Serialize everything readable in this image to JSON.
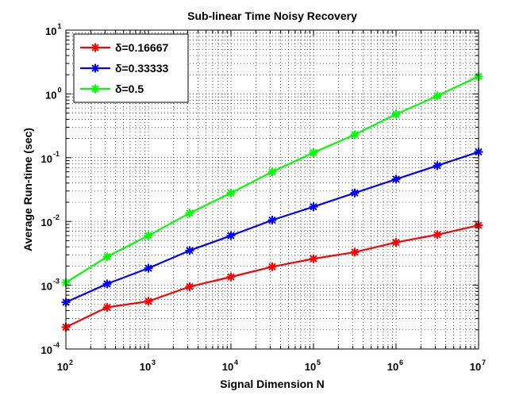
{
  "chart_data": {
    "type": "line",
    "title": "Sub-linear Time Noisy Recovery",
    "xlabel": "Signal Dimension N",
    "ylabel": "Average Run-time (sec)",
    "x_scale": "log",
    "y_scale": "log",
    "xlim": [
      100,
      10000000
    ],
    "ylim": [
      0.0001,
      10
    ],
    "x_ticks": [
      {
        "base": "10",
        "exp": "2",
        "value": 100
      },
      {
        "base": "10",
        "exp": "3",
        "value": 1000
      },
      {
        "base": "10",
        "exp": "4",
        "value": 10000
      },
      {
        "base": "10",
        "exp": "5",
        "value": 100000
      },
      {
        "base": "10",
        "exp": "6",
        "value": 1000000
      },
      {
        "base": "10",
        "exp": "7",
        "value": 10000000
      }
    ],
    "y_ticks": [
      {
        "base": "10",
        "exp": "-4",
        "value": 0.0001
      },
      {
        "base": "10",
        "exp": "-3",
        "value": 0.001
      },
      {
        "base": "10",
        "exp": "-2",
        "value": 0.01
      },
      {
        "base": "10",
        "exp": "-1",
        "value": 0.1
      },
      {
        "base": "10",
        "exp": "0",
        "value": 1
      },
      {
        "base": "10",
        "exp": "1",
        "value": 10
      }
    ],
    "grid": true,
    "legend_position": "top-left",
    "x": [
      100,
      316,
      1000,
      3162,
      10000,
      31623,
      100000,
      316228,
      1000000,
      3162278,
      10000000
    ],
    "series": [
      {
        "name": "δ=0.16667",
        "color": "#ff0000",
        "values": [
          0.00022,
          0.00045,
          0.00056,
          0.00095,
          0.00135,
          0.00195,
          0.0026,
          0.0033,
          0.0047,
          0.0062,
          0.0087
        ]
      },
      {
        "name": "δ=0.33333",
        "color": "#0000ff",
        "values": [
          0.00054,
          0.00105,
          0.00185,
          0.0035,
          0.006,
          0.0105,
          0.017,
          0.028,
          0.046,
          0.075,
          0.123
        ]
      },
      {
        "name": "δ=0.5",
        "color": "#00ff00",
        "values": [
          0.0011,
          0.0028,
          0.006,
          0.0135,
          0.028,
          0.06,
          0.12,
          0.23,
          0.48,
          0.93,
          1.88
        ]
      }
    ]
  }
}
